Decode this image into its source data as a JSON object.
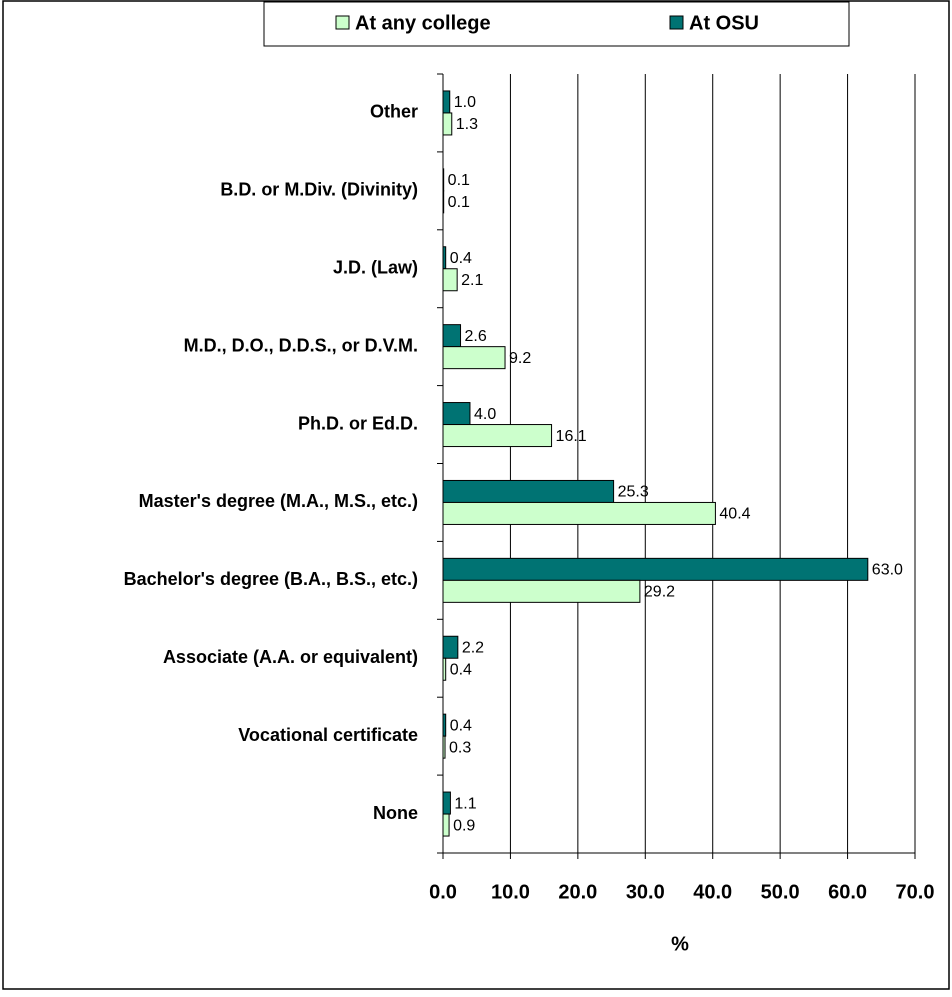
{
  "chart_data": {
    "type": "hbar",
    "categories": [
      "Other",
      "B.D. or M.Div. (Divinity)",
      "J.D. (Law)",
      "M.D., D.O., D.D.S., or D.V.M.",
      "Ph.D. or Ed.D.",
      "Master's degree (M.A., M.S., etc.)",
      "Bachelor's degree (B.A., B.S., etc.)",
      "Associate (A.A. or equivalent)",
      "Vocational certificate",
      "None"
    ],
    "series": [
      {
        "name": "At any college",
        "color": "#ccffcc",
        "values": [
          1.3,
          0.1,
          2.1,
          9.2,
          16.1,
          40.4,
          29.2,
          0.4,
          0.3,
          0.9
        ],
        "value_labels": [
          "1.3",
          "0.1",
          "2.1",
          "9.2",
          "16.1",
          "40.4",
          "29.2",
          "0.4",
          "0.3",
          "0.9"
        ]
      },
      {
        "name": "At OSU",
        "color": "#007373",
        "values": [
          1.0,
          0.1,
          0.4,
          2.6,
          4.0,
          25.3,
          63.0,
          2.2,
          0.4,
          1.1
        ],
        "value_labels": [
          "1.0",
          "0.1",
          "0.4",
          "2.6",
          "4.0",
          "25.3",
          "63.0",
          "2.2",
          "0.4",
          "1.1"
        ]
      }
    ],
    "xlabel": "%",
    "xlim": [
      0,
      70
    ],
    "xticks": [
      {
        "value": 0,
        "label": "0.0"
      },
      {
        "value": 10,
        "label": "10.0"
      },
      {
        "value": 20,
        "label": "20.0"
      },
      {
        "value": 30,
        "label": "30.0"
      },
      {
        "value": 40,
        "label": "40.0"
      },
      {
        "value": 50,
        "label": "50.0"
      },
      {
        "value": 60,
        "label": "60.0"
      },
      {
        "value": 70,
        "label": "70.0"
      }
    ],
    "grid": true,
    "legend": "top"
  }
}
